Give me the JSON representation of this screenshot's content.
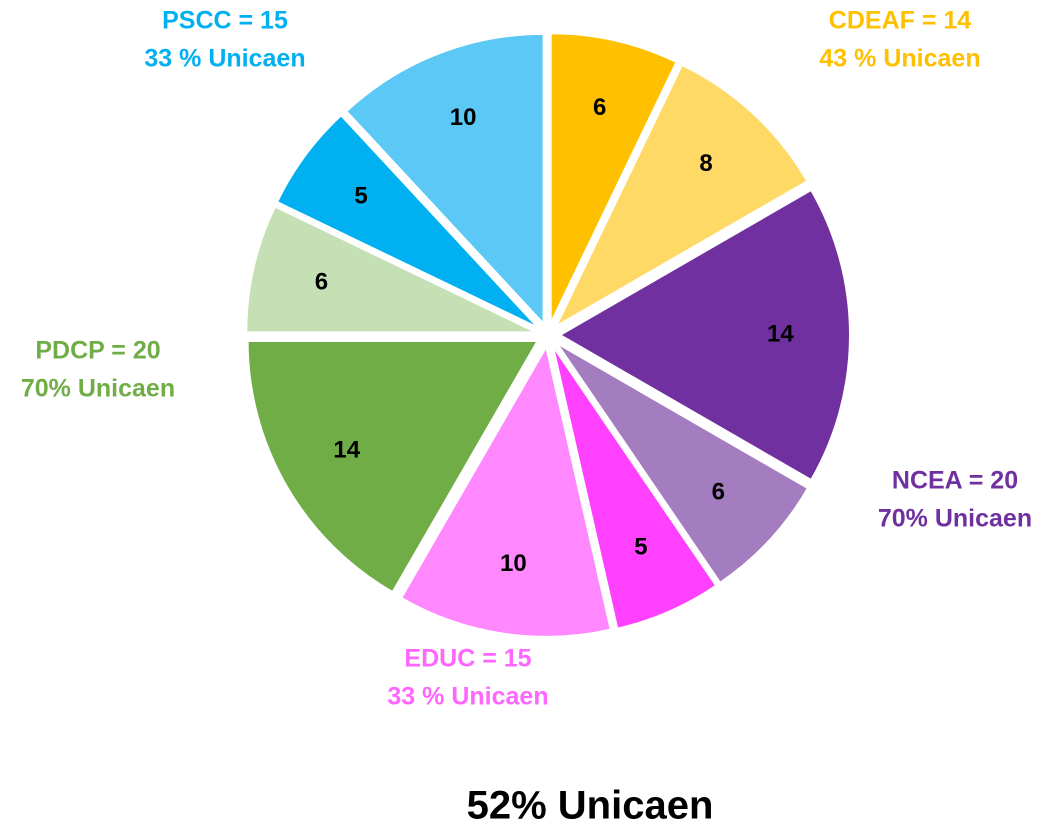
{
  "chart_data": {
    "type": "pie",
    "values": [
      6,
      8,
      14,
      6,
      5,
      10,
      14,
      6,
      5,
      10
    ],
    "colors": [
      "#FFC000",
      "#FFD966",
      "#7030A0",
      "#A47CC0",
      "#FF40FF",
      "#FF88FF",
      "#70AD47",
      "#C5E0B4",
      "#00B0F0",
      "#5BC8F5"
    ],
    "annotations": [
      {
        "lines": [
          "CDEAF = 14",
          "43 % Unicaen"
        ],
        "color": "#FFC000"
      },
      {
        "lines": [
          "NCEA = 20",
          "70% Unicaen"
        ],
        "color": "#7030A0"
      },
      {
        "lines": [
          "EDUC = 15",
          "33 % Unicaen"
        ],
        "color": "#FF66FF"
      },
      {
        "lines": [
          "PDCP = 20",
          "70% Unicaen"
        ],
        "color": "#70AD47"
      },
      {
        "lines": [
          "PSCC = 15",
          "33 % Unicaen"
        ],
        "color": "#00B0F0"
      }
    ],
    "footer": "52% Unicaen"
  }
}
